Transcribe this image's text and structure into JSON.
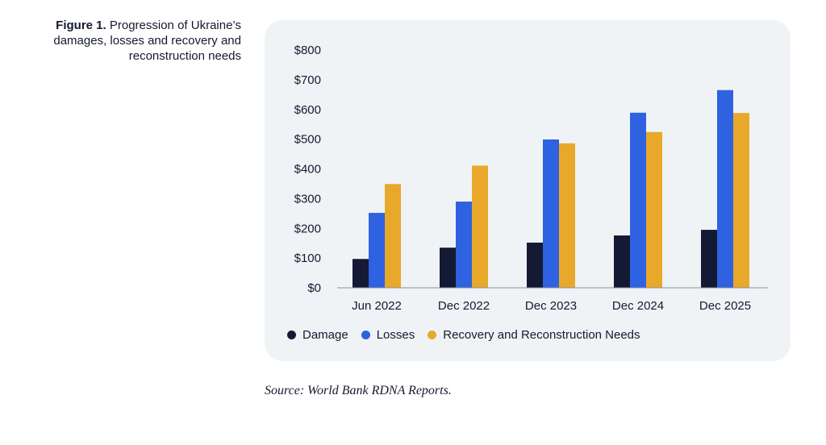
{
  "figure": {
    "label": "Figure 1.",
    "caption": "Progression of Ukraine’s damages, losses and recovery and reconstruction needs"
  },
  "source": "Source: World Bank RDNA Reports.",
  "colors": {
    "damage": "#141a33",
    "losses": "#2f62e0",
    "needs": "#e8a82a",
    "panel_bg": "#f0f3f6",
    "text": "#141a2e"
  },
  "chart_data": {
    "type": "bar",
    "title": "",
    "xlabel": "",
    "ylabel": "",
    "categories": [
      "Jun 2022",
      "Dec 2022",
      "Dec 2023",
      "Dec 2024",
      "Dec 2025"
    ],
    "ylim": [
      0,
      800
    ],
    "yticks": [
      0,
      100,
      200,
      300,
      400,
      500,
      600,
      700,
      800
    ],
    "ytick_labels": [
      "$0",
      "$100",
      "$200",
      "$300",
      "$400",
      "$500",
      "$600",
      "$700",
      "$800"
    ],
    "grid": false,
    "legend_position": "bottom-left",
    "series": [
      {
        "name": "Damage",
        "color": "#141a33",
        "values": [
          97,
          135,
          152,
          176,
          195
        ]
      },
      {
        "name": "Losses",
        "color": "#2f62e0",
        "values": [
          252,
          290,
          499,
          589,
          665
        ]
      },
      {
        "name": "Recovery and Reconstruction Needs",
        "color": "#e8a82a",
        "values": [
          349,
          411,
          486,
          524,
          588
        ]
      }
    ]
  }
}
